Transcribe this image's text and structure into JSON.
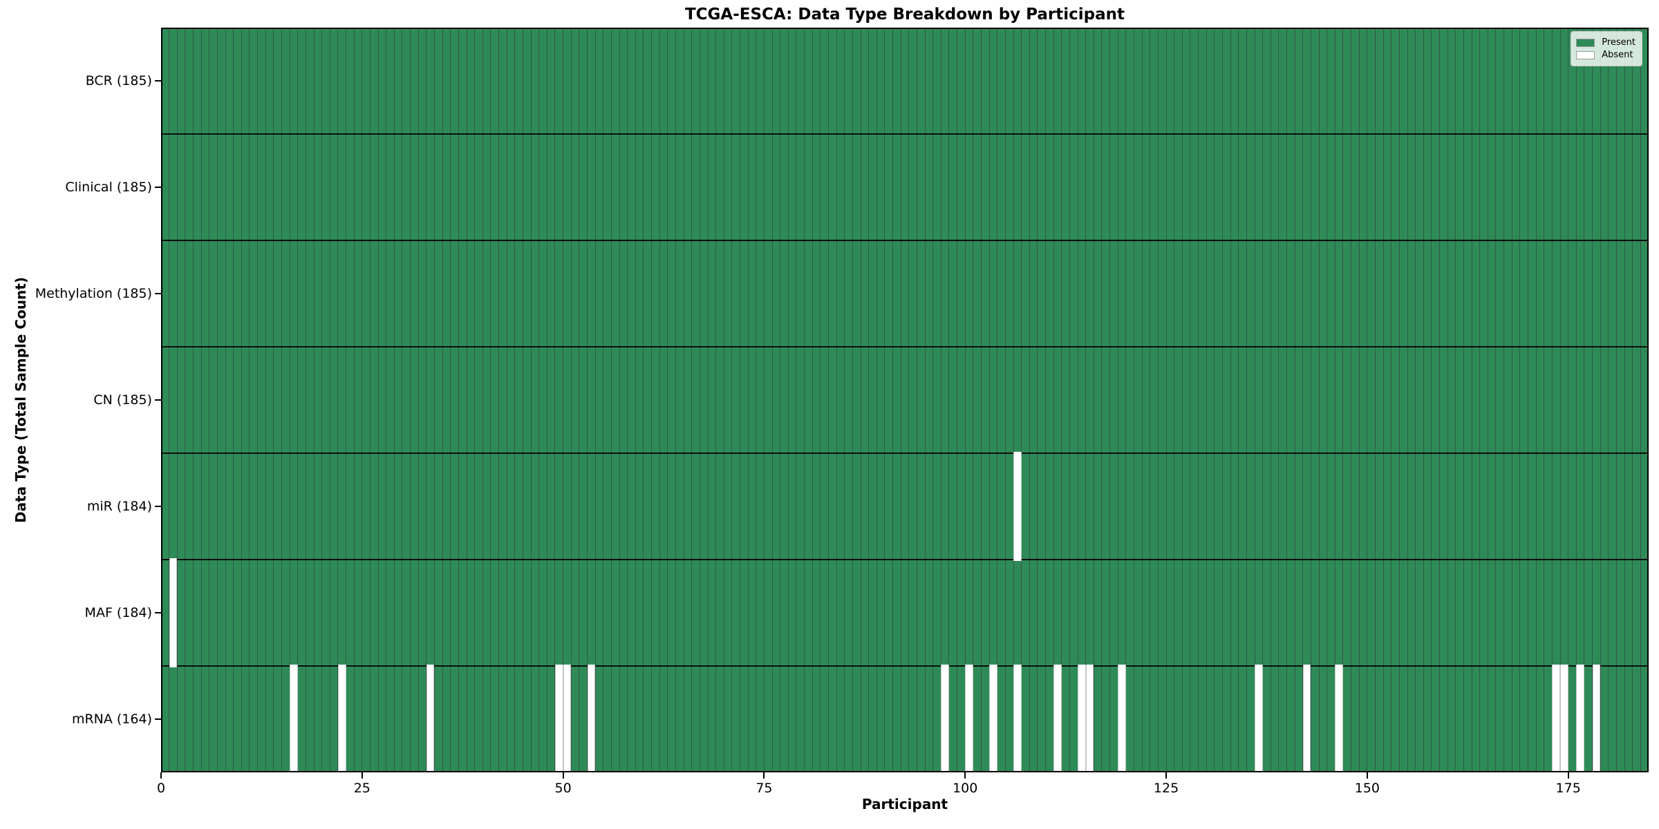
{
  "chart_data": {
    "type": "heatmap",
    "title": "TCGA-ESCA: Data Type Breakdown by Participant",
    "xlabel": "Participant",
    "ylabel": "Data Type (Total Sample Count)",
    "x_ticks": [
      0,
      25,
      50,
      75,
      100,
      125,
      150,
      175
    ],
    "xlim": [
      0,
      185
    ],
    "n_participants": 185,
    "rows": [
      {
        "label": "BCR (185)",
        "data_type": "BCR",
        "count": 185,
        "absent_participants": []
      },
      {
        "label": "Clinical (185)",
        "data_type": "Clinical",
        "count": 185,
        "absent_participants": []
      },
      {
        "label": "Methylation (185)",
        "data_type": "Methylation",
        "count": 185,
        "absent_participants": []
      },
      {
        "label": "CN (185)",
        "data_type": "CN",
        "count": 185,
        "absent_participants": []
      },
      {
        "label": "miR (184)",
        "data_type": "miR",
        "count": 184,
        "absent_participants": [
          106
        ]
      },
      {
        "label": "MAF (184)",
        "data_type": "MAF",
        "count": 184,
        "absent_participants": [
          1
        ]
      },
      {
        "label": "mRNA (164)",
        "data_type": "mRNA",
        "count": 164,
        "absent_participants": [
          16,
          22,
          33,
          49,
          50,
          53,
          97,
          100,
          103,
          106,
          111,
          114,
          115,
          119,
          136,
          142,
          146,
          173,
          174,
          176,
          178
        ]
      }
    ],
    "legend": [
      {
        "label": "Present",
        "color": "#2e8b57"
      },
      {
        "label": "Absent",
        "color": "#ffffff"
      }
    ],
    "colors": {
      "present": "#2e8b57",
      "absent": "#ffffff",
      "cell_edge": "#33584a",
      "row_separator": "#0d0d0d",
      "spine": "#000000",
      "legend_border": "#cccccc"
    },
    "legend_position": "upper right",
    "grid": "cell-edges"
  }
}
